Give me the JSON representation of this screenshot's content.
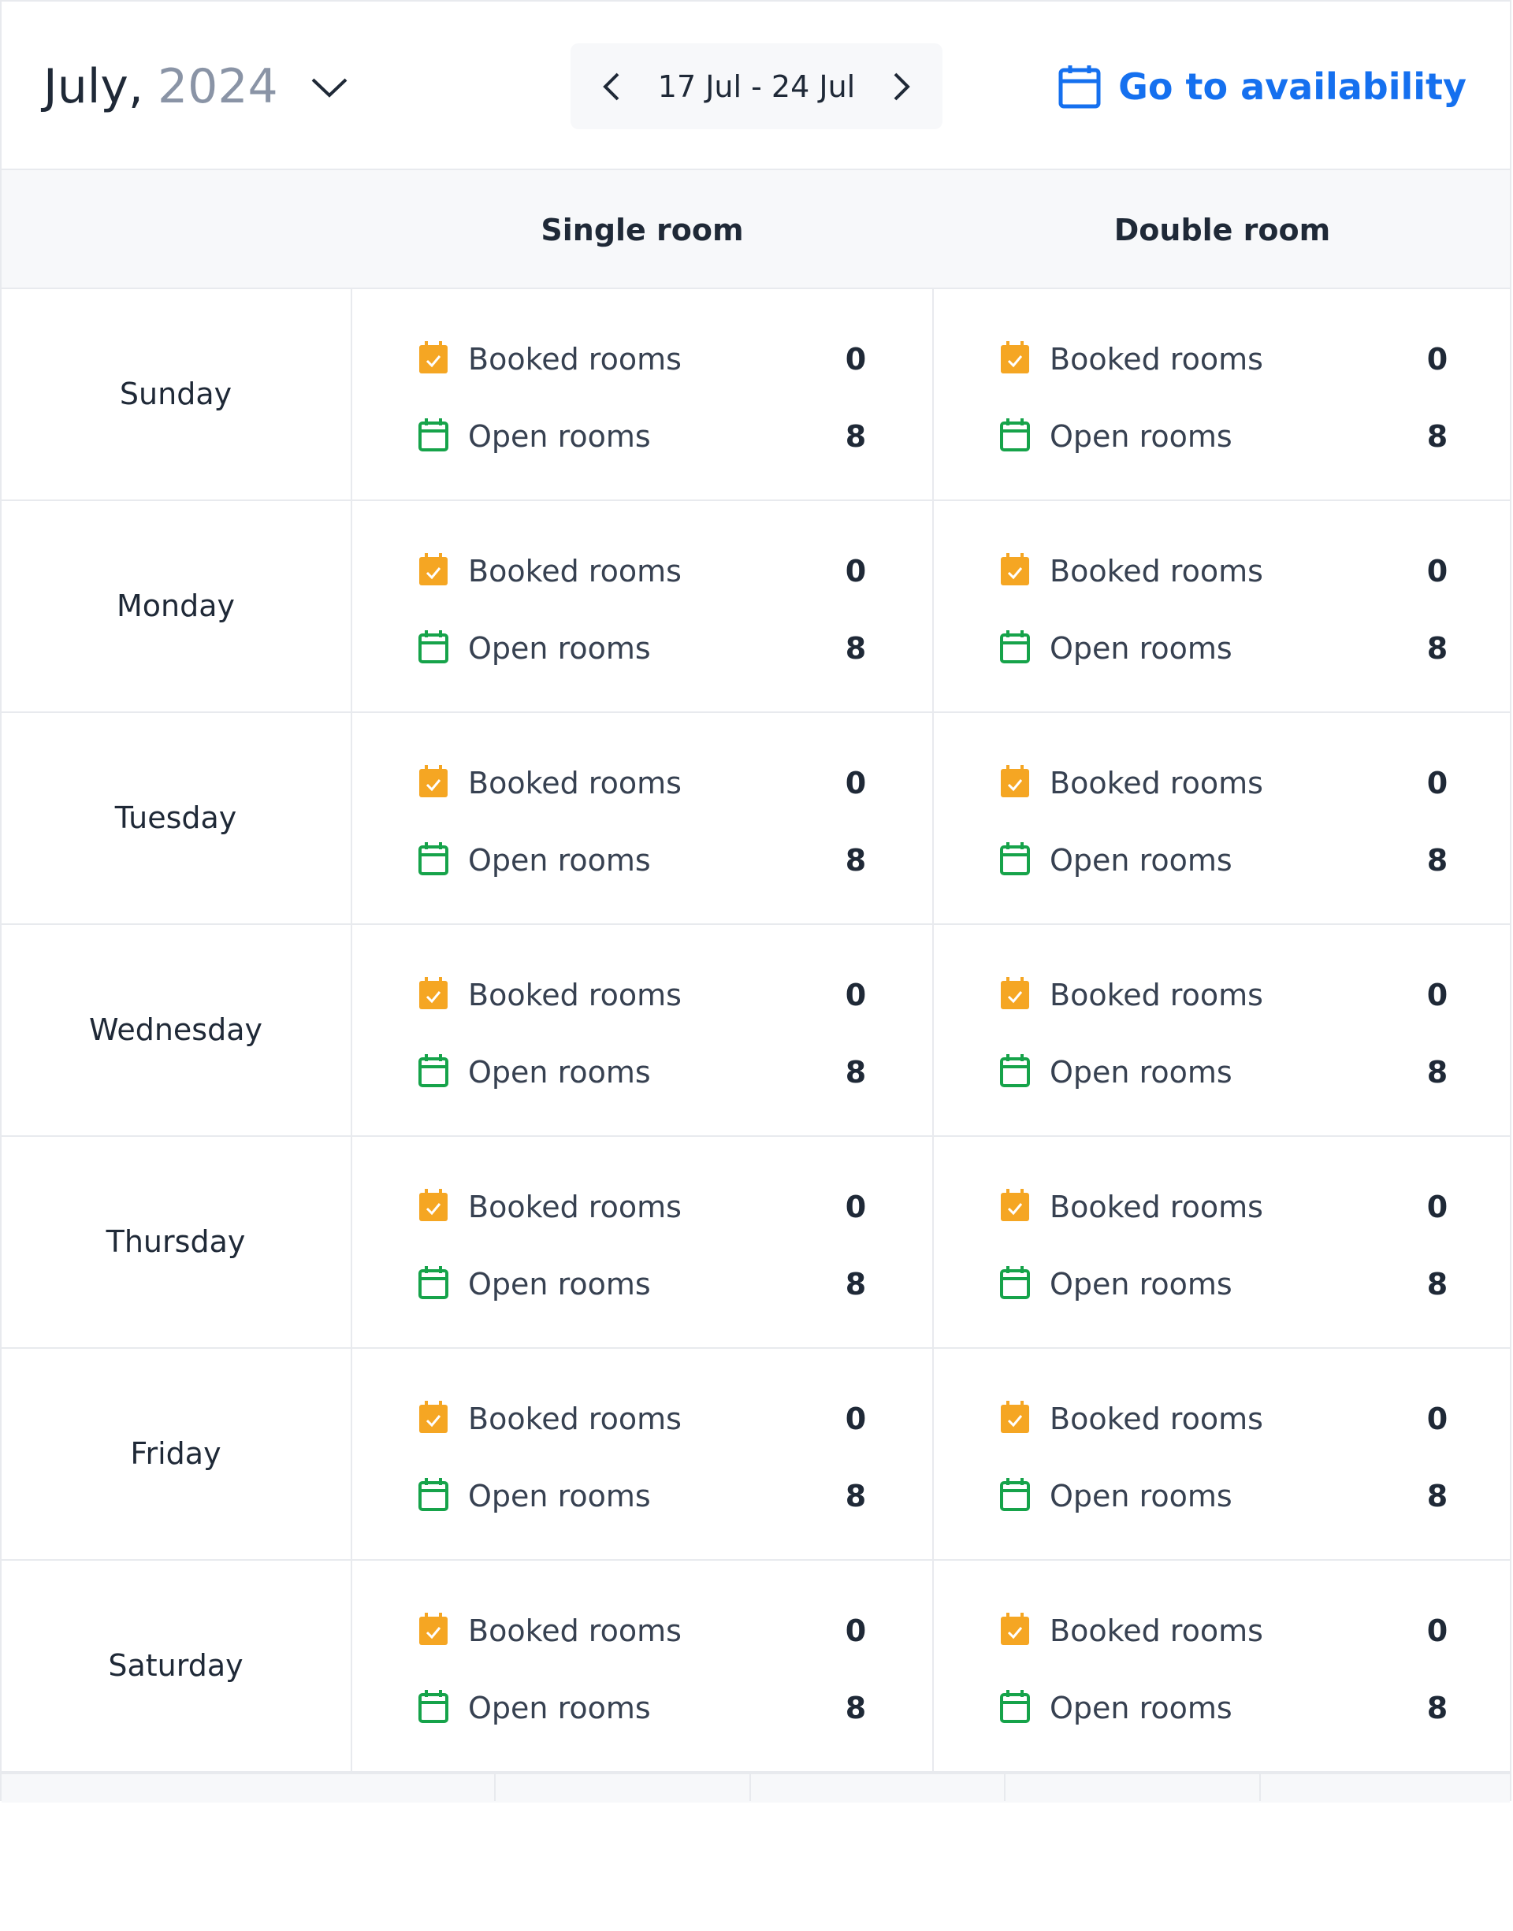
{
  "header": {
    "month": "July,",
    "year": "2024",
    "range": "17 Jul - 24 Jul",
    "action": "Go to availability"
  },
  "columns": [
    "Single room",
    "Double room"
  ],
  "labels": {
    "booked": "Booked rooms",
    "open": "Open rooms"
  },
  "rows": [
    {
      "day": "Sunday",
      "cells": [
        {
          "booked": 0,
          "open": 8
        },
        {
          "booked": 0,
          "open": 8
        }
      ]
    },
    {
      "day": "Monday",
      "cells": [
        {
          "booked": 0,
          "open": 8
        },
        {
          "booked": 0,
          "open": 8
        }
      ]
    },
    {
      "day": "Tuesday",
      "cells": [
        {
          "booked": 0,
          "open": 8
        },
        {
          "booked": 0,
          "open": 8
        }
      ]
    },
    {
      "day": "Wednesday",
      "cells": [
        {
          "booked": 0,
          "open": 8
        },
        {
          "booked": 0,
          "open": 8
        }
      ]
    },
    {
      "day": "Thursday",
      "cells": [
        {
          "booked": 0,
          "open": 8
        },
        {
          "booked": 0,
          "open": 8
        }
      ]
    },
    {
      "day": "Friday",
      "cells": [
        {
          "booked": 0,
          "open": 8
        },
        {
          "booked": 0,
          "open": 8
        }
      ]
    },
    {
      "day": "Saturday",
      "cells": [
        {
          "booked": 0,
          "open": 8
        },
        {
          "booked": 0,
          "open": 8
        }
      ]
    }
  ]
}
